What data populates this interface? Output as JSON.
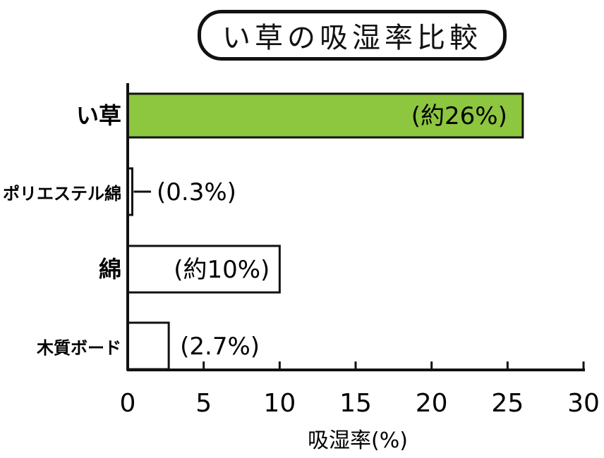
{
  "chart_data": {
    "type": "bar",
    "orientation": "horizontal",
    "title": "い草の吸湿率比較",
    "xlabel": "吸湿率(%)",
    "ylabel": "",
    "xlim": [
      0,
      30
    ],
    "xticks": [
      0,
      5,
      10,
      15,
      20,
      25,
      30
    ],
    "categories": [
      "い草",
      "ポリエステル綿",
      "綿",
      "木質ボード"
    ],
    "values": [
      26,
      0.3,
      10,
      2.7
    ],
    "data_labels": [
      "(約26%)",
      "(0.3%)",
      "(約10%)",
      "(2.7%)"
    ],
    "bar_colors": [
      "#8dc63f",
      "#ffffff",
      "#ffffff",
      "#ffffff"
    ],
    "grid": false,
    "legend": "none"
  }
}
